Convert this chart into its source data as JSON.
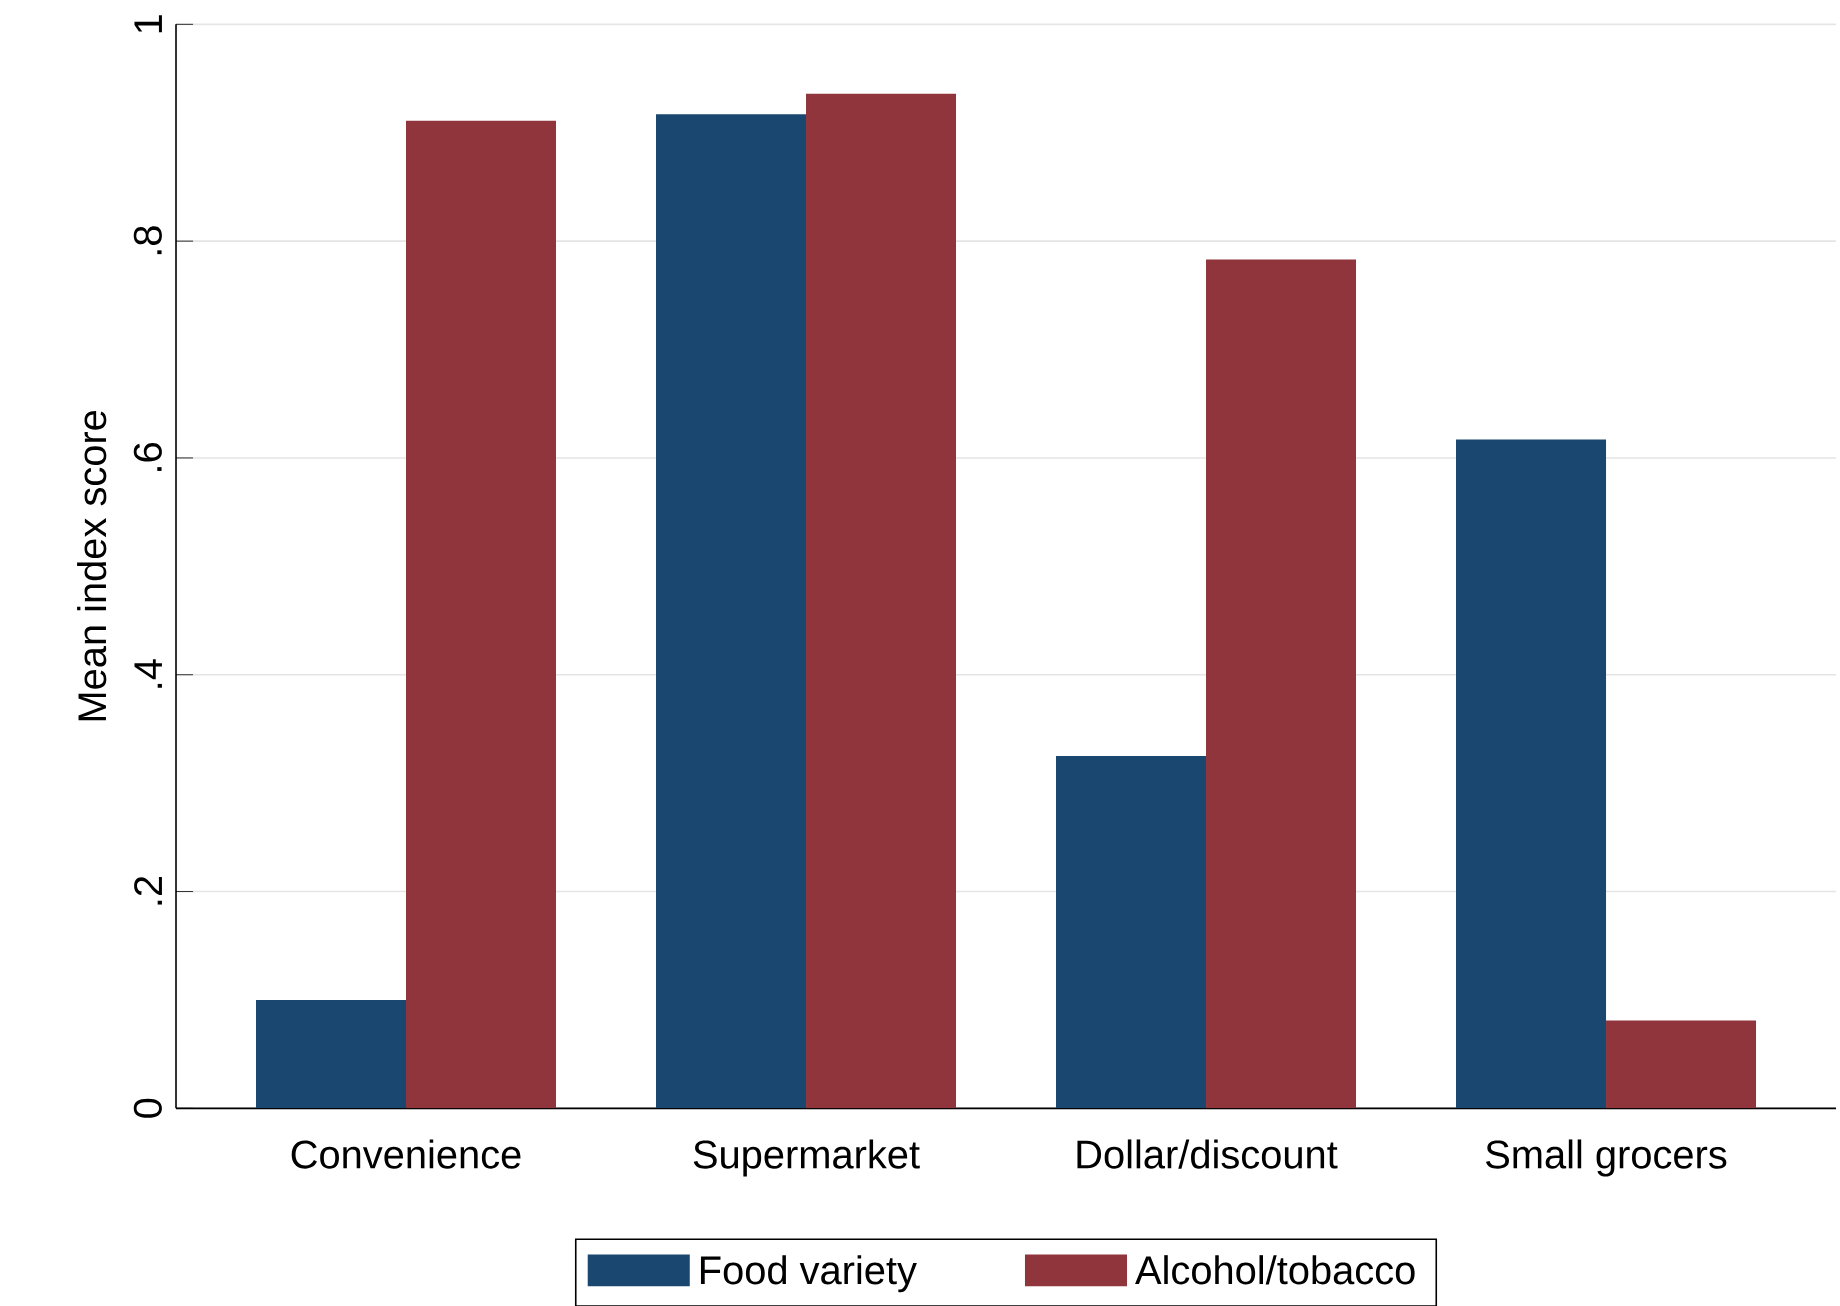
{
  "chart_data": {
    "type": "bar",
    "ylabel": "Mean index score",
    "categories": [
      "Convenience",
      "Supermarket",
      "Dollar/discount",
      "Small grocers"
    ],
    "series": [
      {
        "name": "Food variety",
        "color": "#1a476f",
        "values": [
          0.1,
          0.917,
          0.325,
          0.617
        ]
      },
      {
        "name": "Alcohol/tobacco",
        "color": "#90353b",
        "values": [
          0.911,
          0.936,
          0.783,
          0.081
        ]
      }
    ],
    "ylim": [
      0,
      1
    ],
    "yticks": [
      0,
      {
        "value": 0.2,
        "label": ".2"
      },
      {
        "value": 0.4,
        "label": ".4"
      },
      {
        "value": 0.6,
        "label": ".6"
      },
      {
        "value": 0.8,
        "label": ".8"
      },
      1
    ],
    "grid": "y",
    "legend": "bottom"
  }
}
